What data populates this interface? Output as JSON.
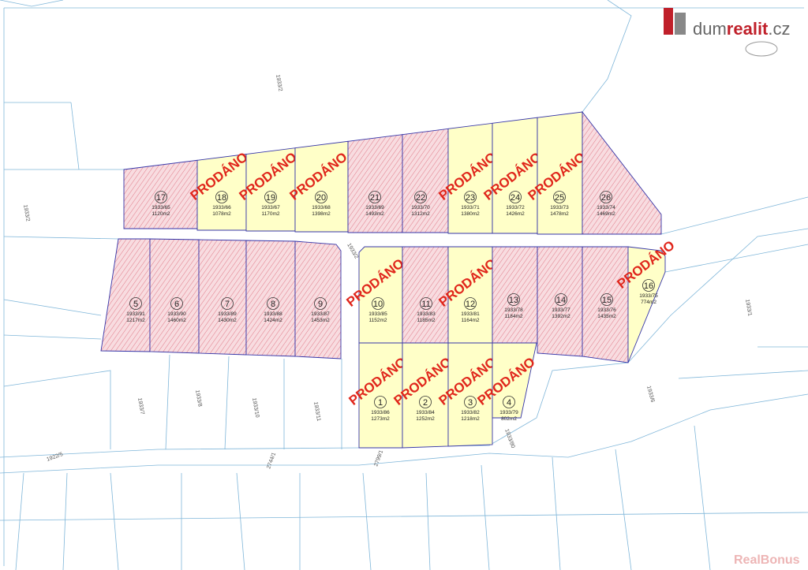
{
  "header": {
    "logo_prefix": "dum",
    "logo_brand": "realit",
    "logo_suffix": ".cz"
  },
  "watermark": "RealBonus",
  "sold_label": "PRODÁNO",
  "map_labels": [
    "1933/2",
    "1933/2",
    "1933/2",
    "1933/6",
    "1933/7",
    "1933/8",
    "1933/10",
    "1933/11",
    "1933/80",
    "1933/1",
    "1922/5",
    "2744/1",
    "2799/1"
  ],
  "plots": [
    {
      "number": "17",
      "parcel": "1933/65",
      "area": "1120m2",
      "sold": false
    },
    {
      "number": "18",
      "parcel": "1933/66",
      "area": "1078m2",
      "sold": true
    },
    {
      "number": "19",
      "parcel": "1933/67",
      "area": "1170m2",
      "sold": true
    },
    {
      "number": "20",
      "parcel": "1933/68",
      "area": "1398m2",
      "sold": true
    },
    {
      "number": "21",
      "parcel": "1933/69",
      "area": "1493m2",
      "sold": false
    },
    {
      "number": "22",
      "parcel": "1933/70",
      "area": "1312m2",
      "sold": false
    },
    {
      "number": "23",
      "parcel": "1933/71",
      "area": "1380m2",
      "sold": true
    },
    {
      "number": "24",
      "parcel": "1933/72",
      "area": "1426m2",
      "sold": true
    },
    {
      "number": "25",
      "parcel": "1933/73",
      "area": "1478m2",
      "sold": true
    },
    {
      "number": "26",
      "parcel": "1933/74",
      "area": "1469m2",
      "sold": false
    },
    {
      "number": "5",
      "parcel": "1933/91",
      "area": "1217m2",
      "sold": false
    },
    {
      "number": "6",
      "parcel": "1933/90",
      "area": "1460m2",
      "sold": false
    },
    {
      "number": "7",
      "parcel": "1933/89",
      "area": "1430m2",
      "sold": false
    },
    {
      "number": "8",
      "parcel": "1933/88",
      "area": "1424m2",
      "sold": false
    },
    {
      "number": "9",
      "parcel": "1933/87",
      "area": "1453m2",
      "sold": false
    },
    {
      "number": "10",
      "parcel": "1933/85",
      "area": "1152m2",
      "sold": true
    },
    {
      "number": "11",
      "parcel": "1933/83",
      "area": "1185m2",
      "sold": false
    },
    {
      "number": "12",
      "parcel": "1933/81",
      "area": "1164m2",
      "sold": true
    },
    {
      "number": "13",
      "parcel": "1933/78",
      "area": "1184m2",
      "sold": false
    },
    {
      "number": "14",
      "parcel": "1933/77",
      "area": "1392m2",
      "sold": false
    },
    {
      "number": "15",
      "parcel": "1933/76",
      "area": "1435m2",
      "sold": false
    },
    {
      "number": "16",
      "parcel": "1933/75",
      "area": "774m2",
      "sold": true
    },
    {
      "number": "1",
      "parcel": "1933/86",
      "area": "1273m2",
      "sold": true
    },
    {
      "number": "2",
      "parcel": "1933/84",
      "area": "1252m2",
      "sold": true
    },
    {
      "number": "3",
      "parcel": "1933/82",
      "area": "1218m2",
      "sold": true
    },
    {
      "number": "4",
      "parcel": "1933/79",
      "area": "802m2",
      "sold": true
    }
  ]
}
